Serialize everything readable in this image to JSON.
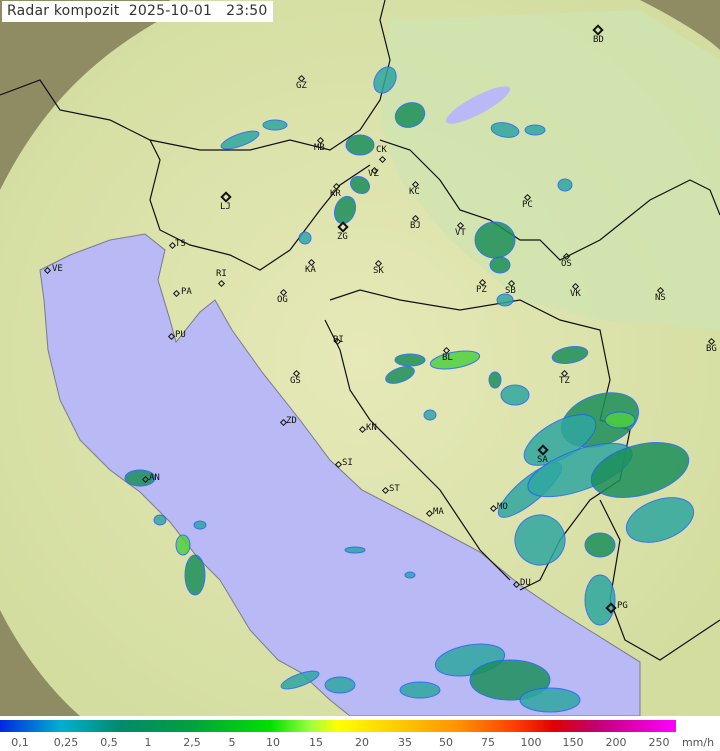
{
  "header": {
    "title": "Radar kompozit",
    "date": "2025-10-01",
    "time": "23:50"
  },
  "cities": [
    "GZ",
    "BD",
    "MB",
    "CK",
    "VZ",
    "KR",
    "KC",
    "LJ",
    "ZG",
    "BJ",
    "VT",
    "PC",
    "TS",
    "VE",
    "RI",
    "KA",
    "SK",
    "OS",
    "PA",
    "OG",
    "PZ",
    "SB",
    "VK",
    "NS",
    "PU",
    "BI",
    "BL",
    "BG",
    "GS",
    "TZ",
    "ZD",
    "KN",
    "SI",
    "SA",
    "AN",
    "ST",
    "MO",
    "MA",
    "DU",
    "PG"
  ],
  "legend": {
    "unit": "mm/h",
    "labels": [
      "0,1",
      "0,25",
      "0,5",
      "1",
      "2,5",
      "5",
      "10",
      "15",
      "20",
      "35",
      "50",
      "75",
      "100",
      "150",
      "200",
      "250"
    ]
  },
  "colors": {
    "sea": "#b9b9f6",
    "land": "#dfe3aa",
    "outside": "#8f8c63",
    "rain_light": "#2fa7a0",
    "rain_mid": "#1c8f5a",
    "rain_heavy": "#4ed040"
  }
}
